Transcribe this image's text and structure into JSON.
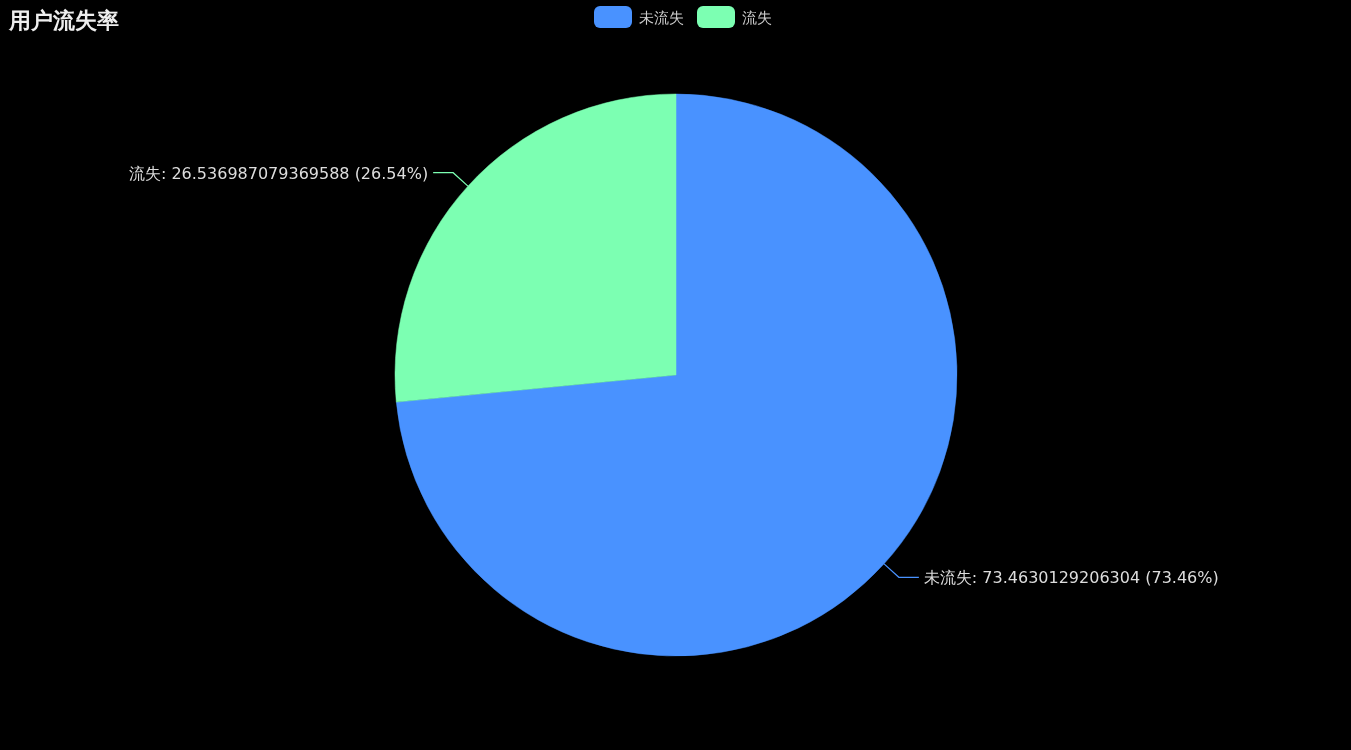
{
  "chart_data": {
    "type": "pie",
    "title": "用户流失率",
    "categories": [
      "未流失",
      "流失"
    ],
    "values": [
      73.4630129206304,
      26.536987079369588
    ],
    "colors": [
      "#4992ff",
      "#7cffb2"
    ],
    "value_labels": [
      "未流失: 73.4630129206304 (73.46%)",
      "流失: 26.536987079369588 (26.54%)"
    ],
    "legend": "top"
  }
}
